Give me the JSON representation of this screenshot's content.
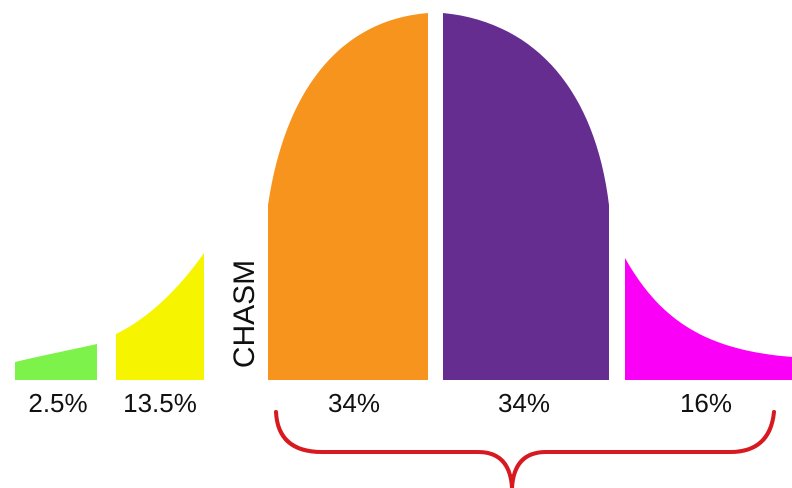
{
  "segments": [
    {
      "id": "innovators",
      "label": "2.5%",
      "value": 2.5,
      "color": "#7cf24a"
    },
    {
      "id": "early-adopters",
      "label": "13.5%",
      "value": 13.5,
      "color": "#f7f400"
    },
    {
      "id": "early-majority",
      "label": "34%",
      "value": 34,
      "color": "#f7941d"
    },
    {
      "id": "late-majority",
      "label": "34%",
      "value": 34,
      "color": "#652d8f"
    },
    {
      "id": "laggards",
      "label": "16%",
      "value": 16,
      "color": "#fb00f6"
    }
  ],
  "chasm": {
    "label": "CHASM"
  },
  "brace": {
    "color": "#d71920"
  }
}
